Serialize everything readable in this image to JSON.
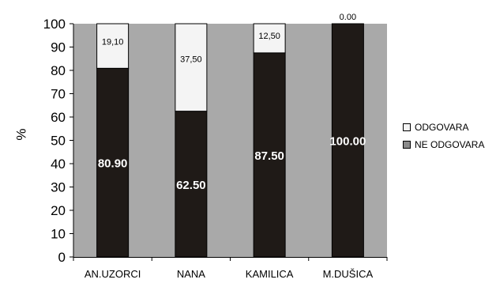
{
  "chart_data": {
    "type": "bar",
    "stacked": true,
    "categories": [
      "AN.UZORCI",
      "NANA",
      "KAMILICA",
      "M.DUŠICA"
    ],
    "series": [
      {
        "name": "NE ODGOVARA",
        "values": [
          80.9,
          62.5,
          87.5,
          100.0
        ],
        "value_labels": [
          "80.90",
          "62.50",
          "87.50",
          "100.00"
        ],
        "color": "#1f1a17"
      },
      {
        "name": "ODGOVARA",
        "values": [
          19.1,
          37.5,
          12.5,
          0.0
        ],
        "value_labels": [
          "19,10",
          "37,50",
          "12,50",
          "0.00"
        ],
        "color": "#f4f4f4"
      }
    ],
    "ylabel": "%",
    "ylim": [
      0,
      100
    ],
    "yticks": [
      "0",
      "10",
      "20",
      "30",
      "40",
      "50",
      "60",
      "70",
      "80",
      "90",
      "100"
    ],
    "grid": false,
    "legend_position": "right",
    "plot_background": "#a9a9a9"
  },
  "legend": {
    "items": [
      {
        "label": "ODGOVARA",
        "color": "#f4f4f4"
      },
      {
        "label": "NE ODGOVARA",
        "color": "#8a8a8a"
      }
    ]
  }
}
